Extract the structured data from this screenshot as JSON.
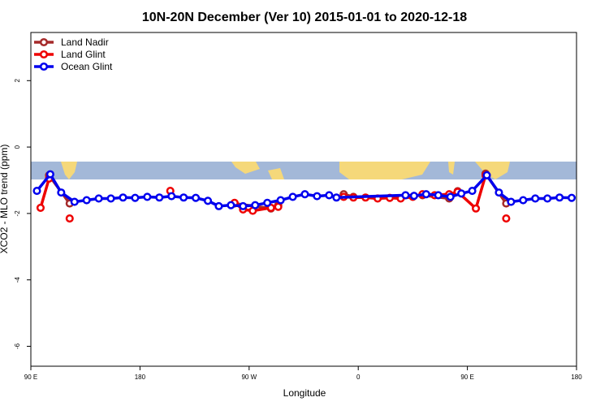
{
  "chart_data": {
    "type": "line",
    "title": "10N-20N December (Ver 10)   2015-01-01 to 2020-12-18",
    "x_label": "Longitude",
    "y_label": "XCO2 - MLO trend (ppm)",
    "xlim": [
      90,
      540
    ],
    "xticks": [
      {
        "value": 90,
        "label": "90 E"
      },
      {
        "value": 180,
        "label": "180"
      },
      {
        "value": 270,
        "label": "90 W"
      },
      {
        "value": 360,
        "label": "0"
      },
      {
        "value": 450,
        "label": "90 E"
      },
      {
        "value": 540,
        "label": "180"
      }
    ],
    "ylim": [
      -6.6,
      3.45
    ],
    "yticks": [
      -6,
      -4,
      -2,
      0,
      2
    ],
    "legend": "top-left",
    "series": [
      {
        "name": "Land Nadir",
        "color": "#a52a2a",
        "x": [
          105,
          122,
          200,
          258,
          288,
          294,
          320,
          348,
          356,
          390,
          413,
          435,
          442,
          455,
          465,
          482
        ],
        "values": [
          -0.85,
          -1.7,
          null,
          -1.7,
          -1.85,
          -1.75,
          null,
          -1.42,
          -1.5,
          null,
          -1.45,
          -1.55,
          -1.33,
          null,
          -0.8,
          -1.7
        ]
      },
      {
        "name": "Land Glint",
        "color": "#ee0000",
        "x": [
          98,
          105,
          114,
          122,
          160,
          205,
          230,
          258,
          265,
          273,
          288,
          294,
          320,
          348,
          356,
          366,
          376,
          386,
          395,
          405,
          413,
          423,
          435,
          442,
          457,
          465,
          474,
          482
        ],
        "values": [
          -1.83,
          -0.95,
          null,
          -2.15,
          null,
          -1.32,
          null,
          -1.68,
          -1.88,
          -1.92,
          -1.83,
          -1.8,
          null,
          -1.5,
          -1.52,
          -1.52,
          -1.55,
          -1.53,
          -1.55,
          -1.5,
          -1.42,
          -1.45,
          -1.42,
          -1.35,
          -1.85,
          -0.85,
          null,
          -2.15
        ]
      },
      {
        "name": "Ocean Glint",
        "color": "#0000ee",
        "x": [
          95,
          106,
          115,
          126,
          136,
          146,
          156,
          166,
          176,
          186,
          196,
          206,
          216,
          226,
          236,
          245,
          255,
          265,
          275,
          285,
          296,
          306,
          316,
          326,
          336,
          342,
          399,
          406,
          416,
          426,
          436,
          445,
          454,
          466,
          476,
          486,
          496,
          506,
          516,
          526,
          536
        ],
        "values": [
          -1.32,
          -0.82,
          -1.37,
          -1.65,
          -1.6,
          -1.55,
          -1.55,
          -1.52,
          -1.53,
          -1.5,
          -1.52,
          -1.48,
          -1.52,
          -1.53,
          -1.62,
          -1.78,
          -1.75,
          -1.78,
          -1.75,
          -1.68,
          -1.6,
          -1.5,
          -1.42,
          -1.48,
          -1.45,
          -1.52,
          -1.45,
          -1.47,
          -1.42,
          -1.45,
          -1.5,
          -1.4,
          -1.32,
          -0.85,
          -1.37,
          -1.65,
          -1.6,
          -1.55,
          -1.55,
          -1.52,
          -1.53
        ]
      }
    ]
  }
}
